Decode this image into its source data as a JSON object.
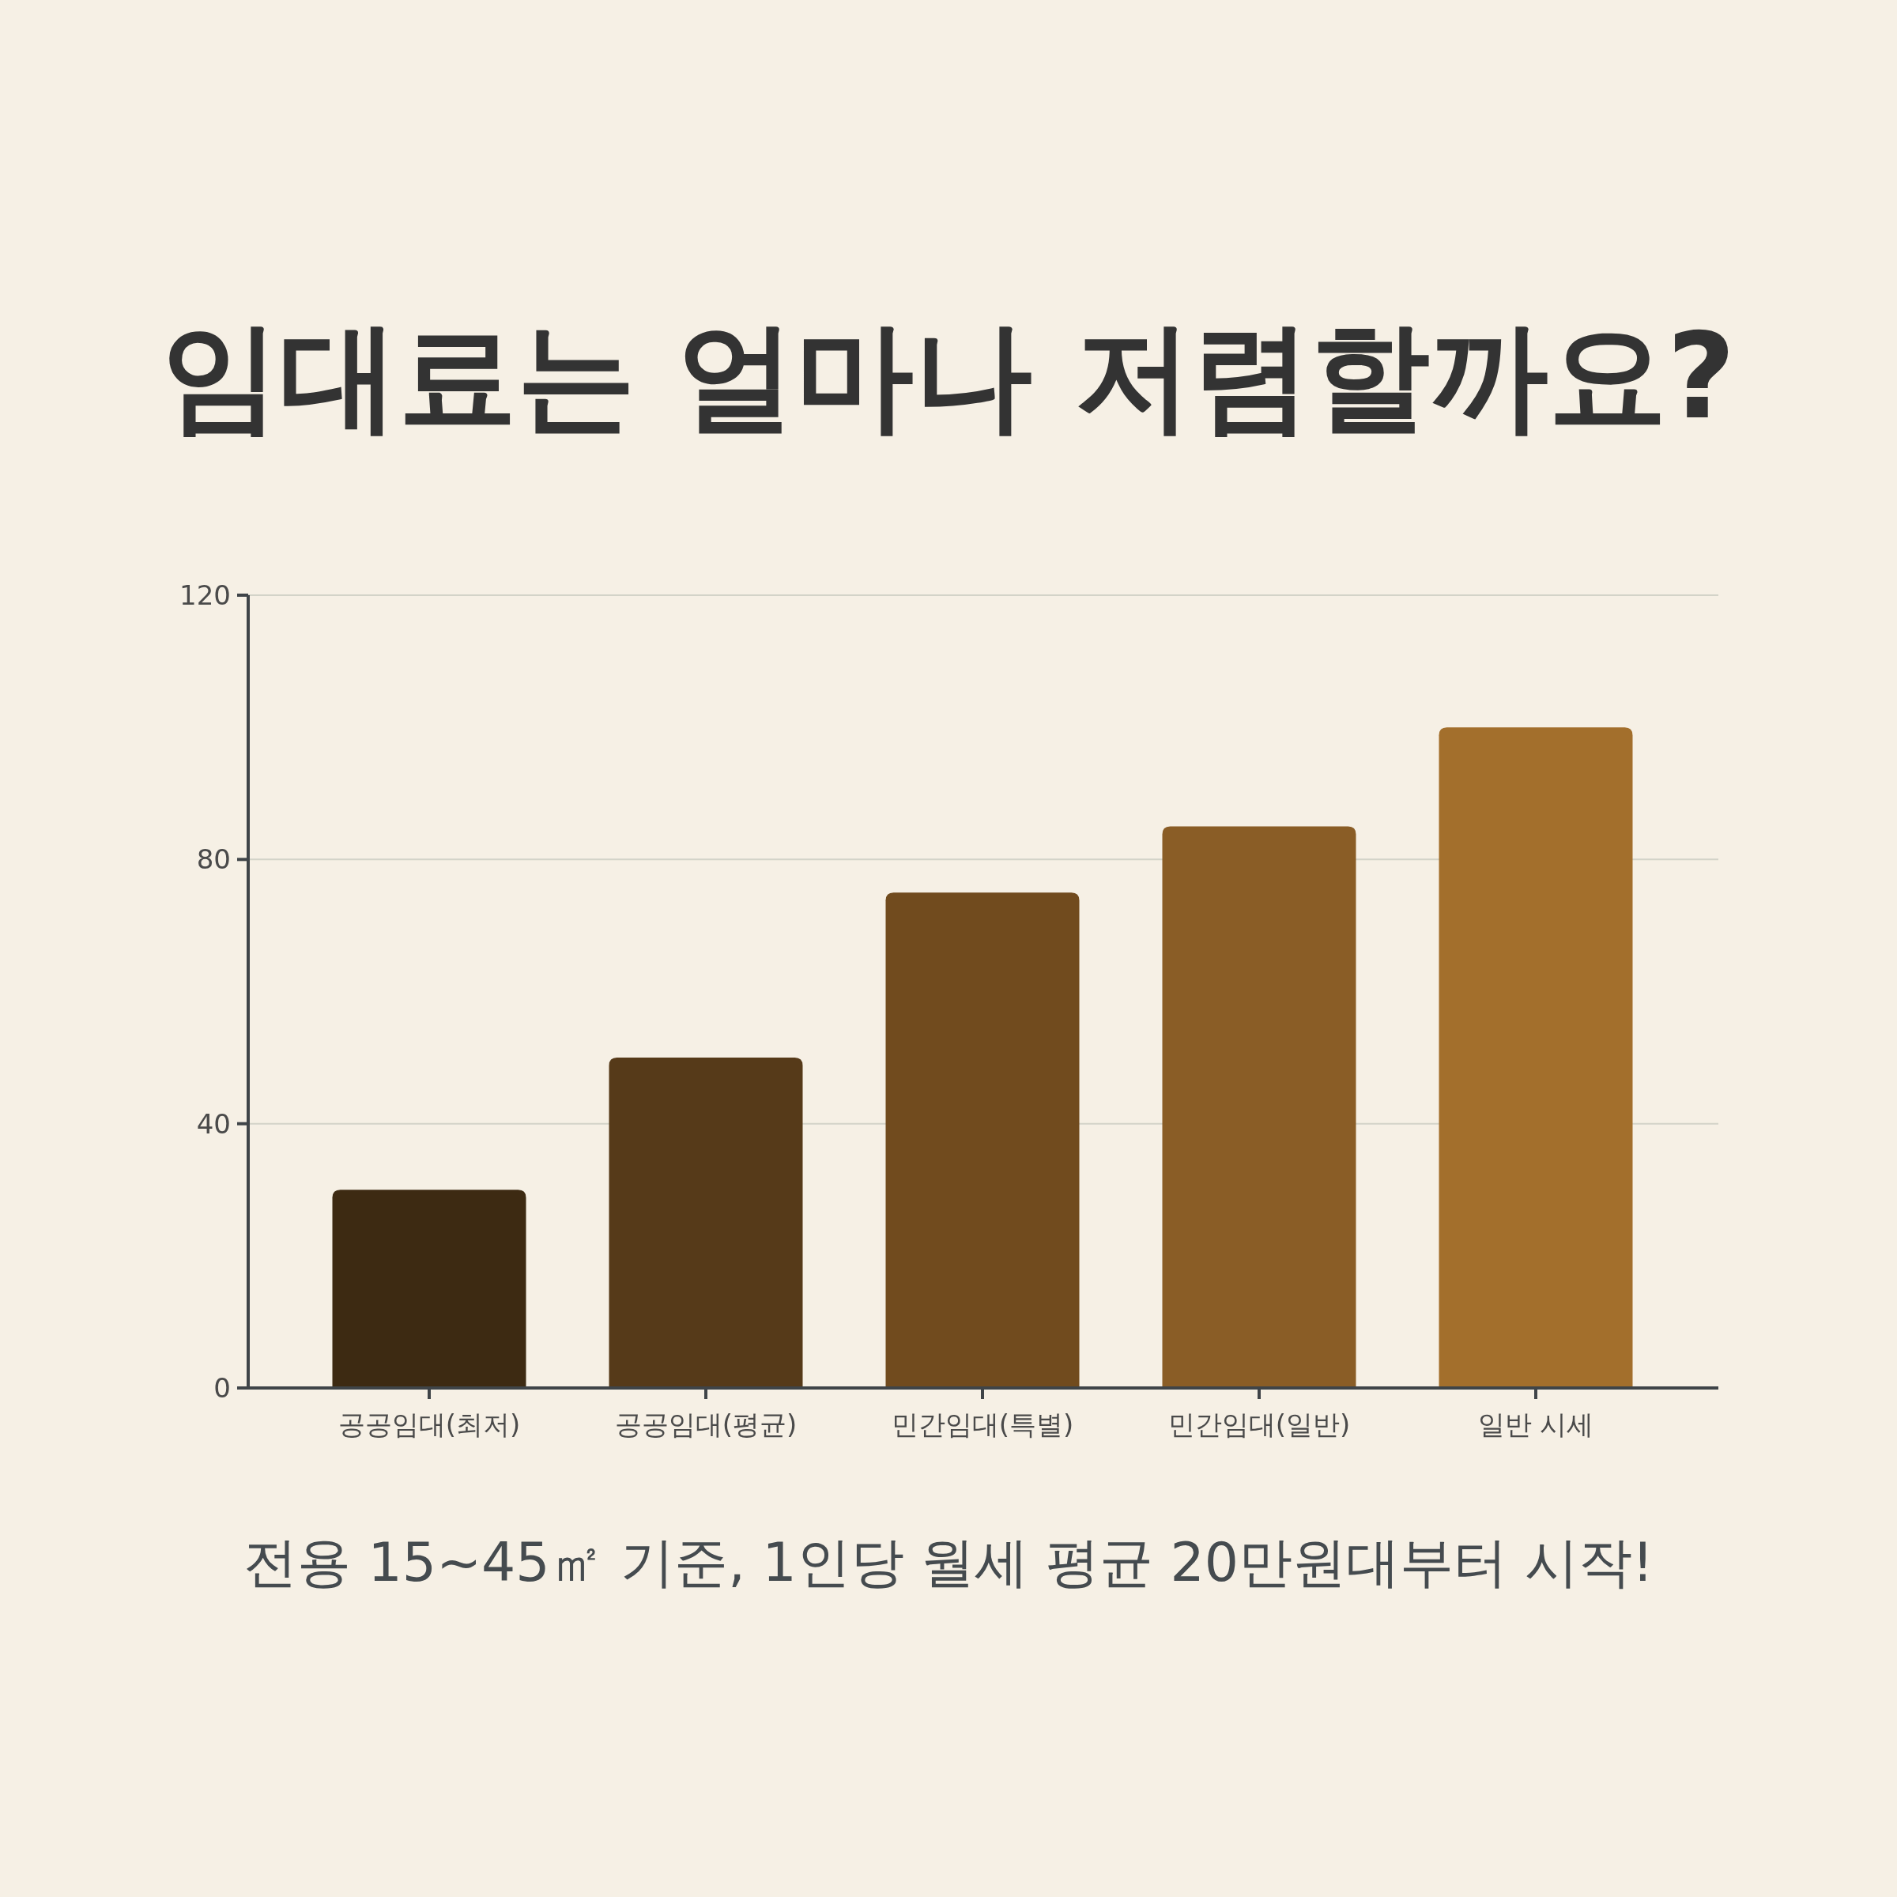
{
  "chart_data": {
    "type": "bar",
    "title": "임대료는 얼마나 저렴할까요?",
    "annotations": [
      "전용 15~45㎡ 기준, 1인당 월세 평균 20만원대부터 시작!"
    ],
    "categories": [
      "공공임대(최저)",
      "공공임대(평균)",
      "민간임대(특별)",
      "민간임대(일반)",
      "일반 시세"
    ],
    "values": [
      30,
      50,
      75,
      85,
      100
    ],
    "colors": [
      "#3d2a12",
      "#563a19",
      "#714b1e",
      "#8a5d26",
      "#a36f2c"
    ],
    "ylim": [
      0,
      120
    ],
    "yticks": [
      0,
      40,
      80,
      120
    ],
    "grid": "y"
  }
}
